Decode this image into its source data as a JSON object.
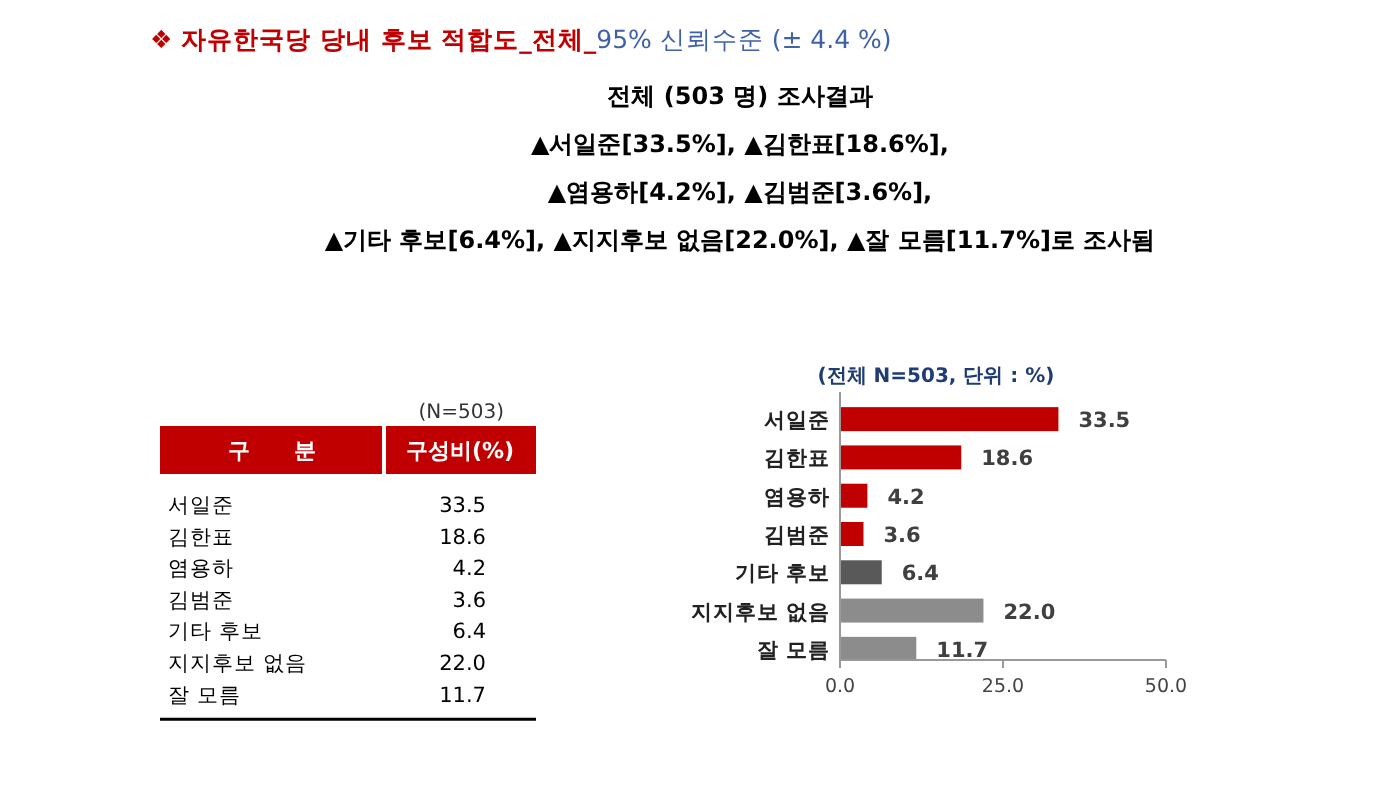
{
  "chart_data": {
    "type": "bar",
    "orientation": "horizontal",
    "title": "❖ 자유한국당 당내 후보 적합도_전체_",
    "subtitle": "95% 신뢰수준 (± 4.4 %)",
    "categories": [
      "서일준",
      "김한표",
      "염용하",
      "김범준",
      "기타 후보",
      "지지후보 없음",
      "잘 모름"
    ],
    "values": [
      33.5,
      18.6,
      4.2,
      3.6,
      6.4,
      22.0,
      11.7
    ],
    "colors": [
      "#c00000",
      "#c00000",
      "#c00000",
      "#c00000",
      "#595959",
      "#8c8c8c",
      "#8c8c8c"
    ],
    "xlim": [
      0,
      50
    ],
    "xticks": [
      {
        "value": 0,
        "label": "0.0"
      },
      {
        "value": 25,
        "label": "25.0"
      },
      {
        "value": 50,
        "label": "50.0"
      }
    ],
    "value_labels": [
      "33.5",
      "18.6",
      "4.2",
      "3.6",
      "6.4",
      "22.0",
      "11.7"
    ],
    "annotations": [
      "전체 (503 명) 조사결과",
      "▲서일준[33.5%], ▲김한표[18.6%],",
      "▲염용하[4.2%], ▲김범준[3.6%],",
      "▲기타 후보[6.4%], ▲지지후보 없음[22.0%], ▲잘 모름[11.7%]로 조사됨",
      "(N=503)",
      "구　　분",
      "구성비(%)",
      "(전체 N=503, 단위 : %)"
    ]
  }
}
